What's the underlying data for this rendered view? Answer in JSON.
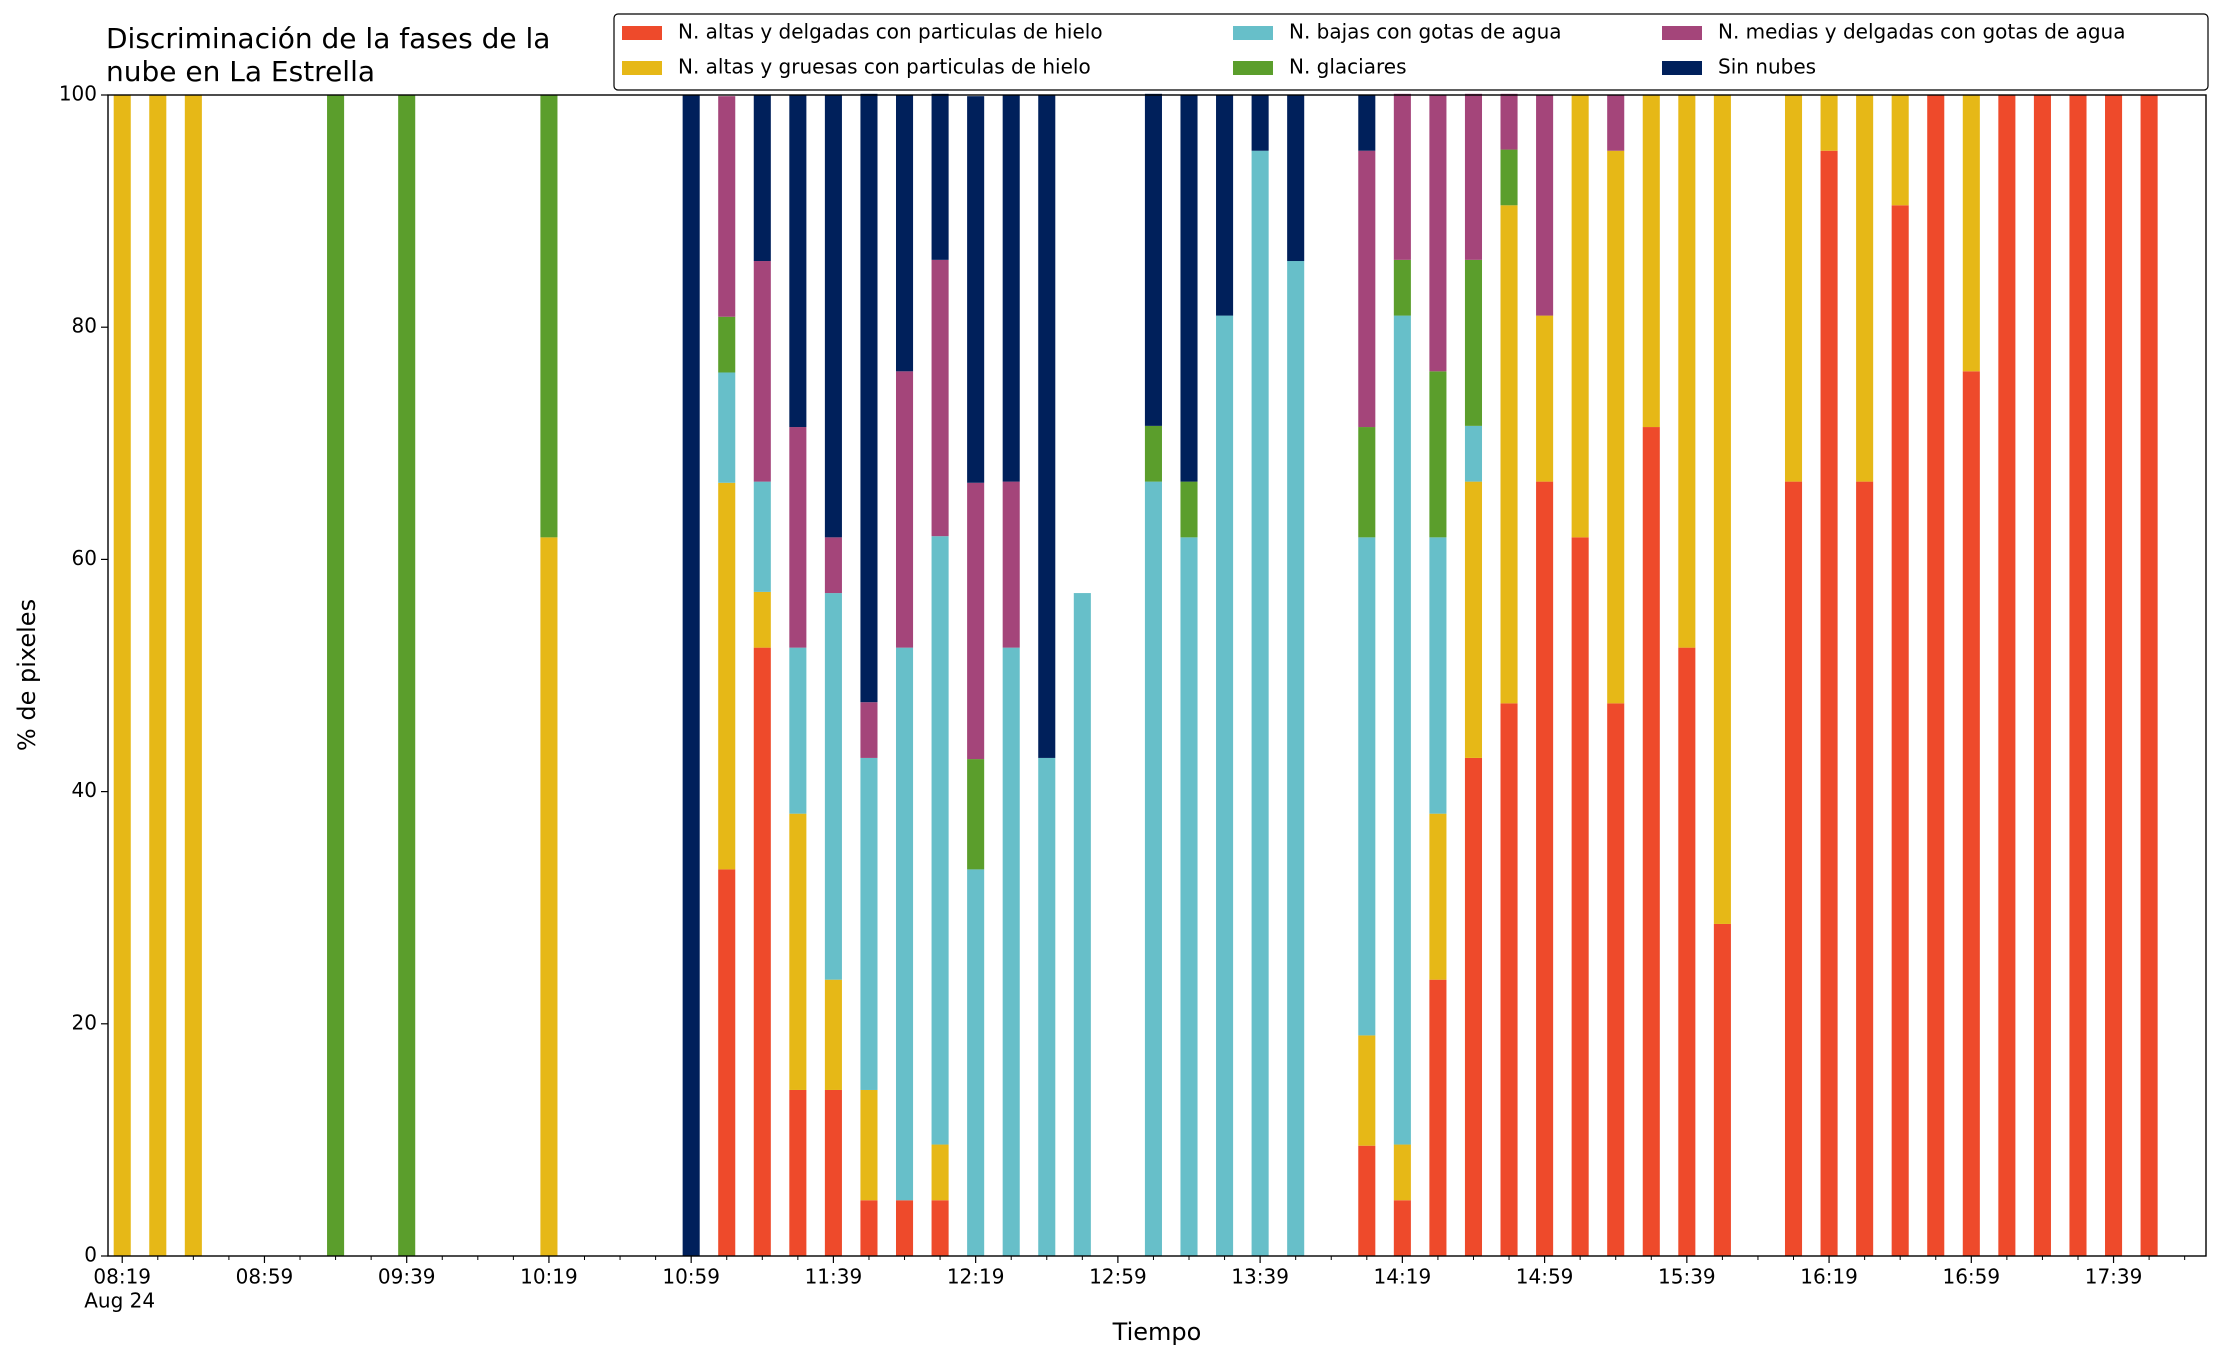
{
  "chart_data": {
    "type": "stacked_bar",
    "title": [
      "Discriminación de la fases de la",
      "nube en La Estrella"
    ],
    "x_label": "Tiempo",
    "y_label": "% de pixeles",
    "x_date_label": "Aug 24",
    "x": [
      "08:19",
      "08:29",
      "08:39",
      "09:19",
      "09:39",
      "10:19",
      "10:59",
      "11:09",
      "11:19",
      "11:29",
      "11:39",
      "11:49",
      "11:59",
      "12:09",
      "12:19",
      "12:29",
      "12:39",
      "12:49",
      "13:09",
      "13:19",
      "13:29",
      "13:39",
      "13:49",
      "14:09",
      "14:19",
      "14:29",
      "14:39",
      "14:49",
      "14:59",
      "15:09",
      "15:19",
      "15:29",
      "15:39",
      "15:49",
      "16:09",
      "16:19",
      "16:29",
      "16:39",
      "16:49",
      "16:59",
      "17:09",
      "17:19",
      "17:29",
      "17:39",
      "17:49"
    ],
    "series": [
      {
        "name": "N. altas y delgadas con particulas de hielo",
        "color": "#ee4a2b",
        "values": [
          0,
          0,
          0,
          0,
          0,
          0,
          0,
          33.3,
          52.4,
          14.3,
          14.3,
          4.8,
          4.8,
          4.8,
          0,
          0,
          0,
          0,
          0,
          0,
          0,
          0,
          0,
          9.5,
          4.8,
          23.8,
          42.9,
          47.6,
          66.7,
          61.9,
          47.6,
          71.4,
          52.4,
          28.6,
          66.7,
          95.2,
          66.7,
          90.5,
          100,
          76.2,
          100,
          100,
          100,
          100,
          100
        ]
      },
      {
        "name": "N. altas y gruesas con particulas de hielo",
        "color": "#e6b817",
        "values": [
          100,
          100,
          100,
          0,
          0,
          61.9,
          0,
          33.3,
          4.8,
          23.8,
          9.5,
          9.5,
          0,
          4.8,
          0,
          0,
          0,
          0,
          0,
          0,
          0,
          0,
          0,
          9.5,
          4.8,
          14.3,
          23.8,
          42.9,
          14.3,
          38.1,
          47.6,
          28.6,
          47.6,
          71.4,
          33.3,
          4.8,
          33.3,
          9.5,
          0,
          23.8,
          0,
          0,
          0,
          0,
          0
        ]
      },
      {
        "name": "N. bajas con gotas de agua",
        "color": "#67bfc9",
        "values": [
          0,
          0,
          0,
          0,
          0,
          0,
          0,
          9.5,
          9.5,
          14.3,
          33.3,
          28.6,
          47.6,
          52.4,
          33.3,
          52.4,
          42.9,
          57.1,
          66.7,
          61.9,
          81,
          95.2,
          85.7,
          42.9,
          71.4,
          23.8,
          4.8,
          0,
          0,
          0,
          0,
          0,
          0,
          0,
          0,
          0,
          0,
          0,
          0,
          0,
          0,
          0,
          0,
          0,
          0
        ]
      },
      {
        "name": "N. glaciares",
        "color": "#5b9e2c",
        "values": [
          0,
          0,
          0,
          100,
          100,
          38.1,
          0,
          4.8,
          0,
          0,
          0,
          0,
          0,
          0,
          9.5,
          0,
          0,
          0,
          4.8,
          4.8,
          0,
          0,
          0,
          9.5,
          4.8,
          14.3,
          14.3,
          4.8,
          0,
          0,
          0,
          0,
          0,
          0,
          0,
          0,
          0,
          0,
          0,
          0,
          0,
          0,
          0,
          0,
          0
        ]
      },
      {
        "name": "N. medias y delgadas con gotas de agua",
        "color": "#a4457a",
        "values": [
          0,
          0,
          0,
          0,
          0,
          0,
          0,
          19,
          19,
          19,
          4.8,
          4.8,
          23.8,
          23.8,
          23.8,
          14.3,
          0,
          0,
          0,
          0,
          0,
          0,
          0,
          23.8,
          14.3,
          23.8,
          14.3,
          4.8,
          19,
          0,
          4.8,
          0,
          0,
          0,
          0,
          0,
          0,
          0,
          0,
          0,
          0,
          0,
          0,
          0,
          0
        ]
      },
      {
        "name": "Sin nubes",
        "color": "#00205b",
        "values": [
          0,
          0,
          0,
          0,
          0,
          0,
          100,
          0,
          14.3,
          28.6,
          38.1,
          52.4,
          23.8,
          14.3,
          33.3,
          33.3,
          57.1,
          0,
          28.6,
          33.3,
          19,
          4.8,
          14.3,
          4.8,
          0,
          0,
          0,
          0,
          0,
          0,
          0,
          0,
          0,
          0,
          0,
          0,
          0,
          0,
          0,
          0,
          0,
          0,
          0,
          0,
          0
        ]
      }
    ],
    "xlim": [
      "08:15",
      "18:05"
    ],
    "xticks": [
      "08:19",
      "08:59",
      "09:39",
      "10:19",
      "10:59",
      "11:39",
      "12:19",
      "12:59",
      "13:39",
      "14:19",
      "14:59",
      "15:39",
      "16:19",
      "16:59",
      "17:39"
    ],
    "xminorticks": [
      "08:29",
      "08:39",
      "08:49",
      "09:09",
      "09:19",
      "09:29",
      "09:49",
      "09:59",
      "10:09",
      "10:29",
      "10:39",
      "10:49",
      "11:09",
      "11:19",
      "11:29",
      "11:49",
      "11:59",
      "12:09",
      "12:29",
      "12:39",
      "12:49",
      "13:09",
      "13:19",
      "13:29",
      "13:49",
      "13:59",
      "14:09",
      "14:29",
      "14:39",
      "14:49",
      "15:09",
      "15:19",
      "15:29",
      "15:49",
      "15:59",
      "16:09",
      "16:29",
      "16:39",
      "16:49",
      "17:09",
      "17:19",
      "17:29",
      "17:49",
      "17:59"
    ],
    "ylim": [
      0,
      100
    ],
    "yticks": [
      0,
      20,
      40,
      60,
      80,
      100
    ],
    "grid": false,
    "legend": "upper right"
  }
}
